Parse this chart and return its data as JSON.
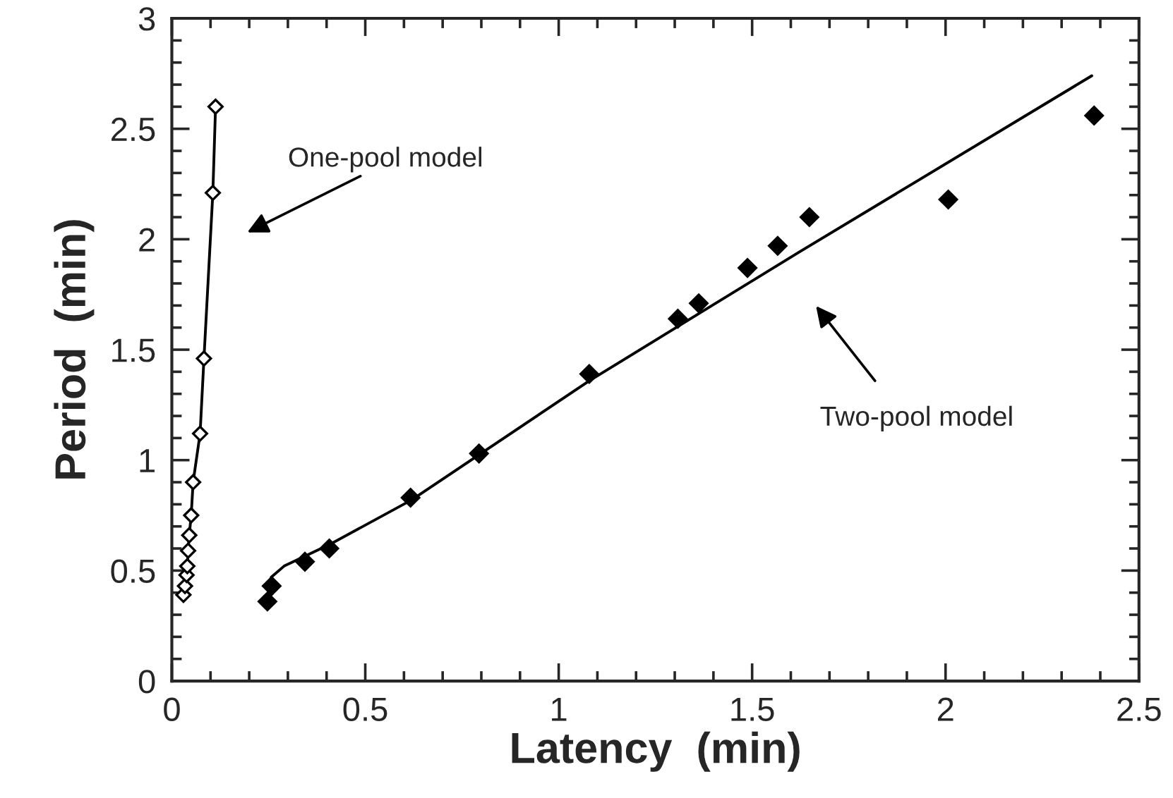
{
  "chart_data": {
    "type": "line",
    "xlabel": "Latency  (min)",
    "ylabel": "Period  (min)",
    "xlim": [
      0,
      2.5
    ],
    "xticks": [
      0,
      0.5,
      1,
      1.5,
      2,
      2.5
    ],
    "ylim": [
      0,
      3
    ],
    "yticks": [
      0,
      0.5,
      1,
      1.5,
      2,
      2.5,
      3
    ],
    "grid": false,
    "series": [
      {
        "type": "line",
        "marker": "diamond",
        "line_style": "solid",
        "color": "#000000",
        "x": [
          0.03,
          0.034,
          0.038,
          0.04,
          0.042,
          0.045,
          0.05,
          0.055,
          0.073,
          0.083,
          0.106,
          0.113
        ],
        "values": [
          0.39,
          0.43,
          0.48,
          0.52,
          0.59,
          0.66,
          0.75,
          0.9,
          1.12,
          1.46,
          2.21,
          2.6
        ]
      },
      {
        "type": "scatter",
        "marker": "diamond",
        "color": "#000000",
        "x": [
          0.247,
          0.258,
          0.344,
          0.407,
          0.617,
          0.794,
          1.079,
          1.308,
          1.362,
          1.488,
          1.566,
          1.648,
          2.007,
          2.384
        ],
        "values": [
          0.36,
          0.43,
          0.54,
          0.6,
          0.83,
          1.03,
          1.39,
          1.64,
          1.71,
          1.87,
          1.97,
          2.1,
          2.18,
          2.56
        ]
      },
      {
        "marker": "none",
        "line_style": "solid",
        "color": "#000000",
        "x": [
          0.257,
          0.29,
          0.41,
          0.62,
          1.08,
          1.62,
          2.378
        ],
        "values": [
          0.47,
          0.52,
          0.62,
          0.82,
          1.36,
          1.94,
          2.74
        ]
      }
    ],
    "annotations": [
      "One-pool model",
      "Two-pool model"
    ]
  }
}
